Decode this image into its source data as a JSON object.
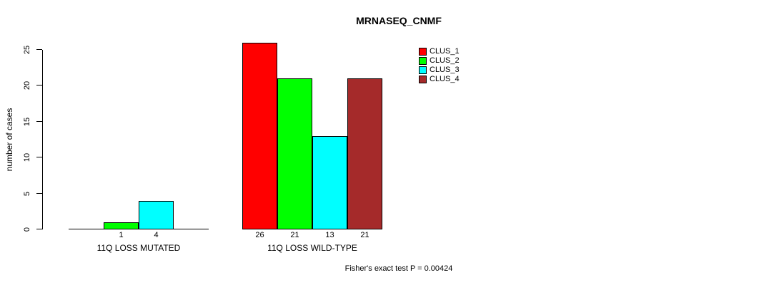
{
  "chart_data": {
    "type": "bar",
    "title": "MRNASEQ_CNMF",
    "ylabel": "number of cases",
    "xlabel": "",
    "ylim": [
      0,
      26
    ],
    "yticks": [
      0,
      5,
      10,
      15,
      20,
      25
    ],
    "grid": false,
    "legend_position": "top-right",
    "series": [
      {
        "name": "CLUS_1",
        "color": "#ff0000"
      },
      {
        "name": "CLUS_2",
        "color": "#00ff00"
      },
      {
        "name": "CLUS_3",
        "color": "#00ffff"
      },
      {
        "name": "CLUS_4",
        "color": "#a52a2a"
      }
    ],
    "groups": [
      {
        "label": "11Q LOSS MUTATED",
        "values": [
          0,
          1,
          4,
          0
        ],
        "bar_labels": [
          "",
          "1",
          "4",
          ""
        ]
      },
      {
        "label": "11Q LOSS WILD-TYPE",
        "values": [
          26,
          21,
          13,
          21
        ],
        "bar_labels": [
          "26",
          "21",
          "13",
          "21"
        ]
      }
    ],
    "annotation": "Fisher's exact test P = 0.00424"
  },
  "colors": {
    "background": "#ffffff",
    "axis": "#000000",
    "text": "#000000"
  }
}
